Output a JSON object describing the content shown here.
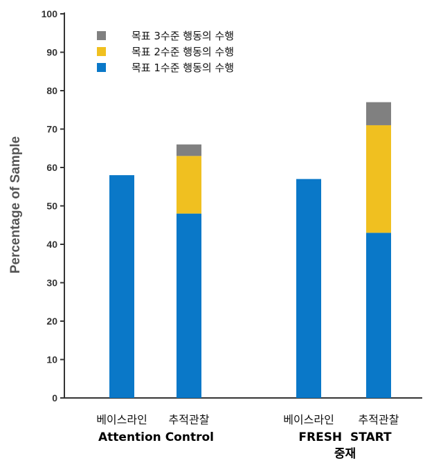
{
  "chart_data": {
    "type": "bar",
    "stacked": true,
    "ylabel": "Percentage of Sample",
    "xlabel": "",
    "ylim": [
      0,
      100
    ],
    "yticks": [
      0,
      10,
      20,
      30,
      40,
      50,
      60,
      70,
      80,
      90,
      100
    ],
    "grid": false,
    "legend_position": "top-left",
    "categories": [
      "베이스라인",
      "추적관찰",
      "베이스라인",
      "추적관찰"
    ],
    "groups": [
      {
        "label": "Attention Control",
        "categories": [
          "베이스라인",
          "추적관찰"
        ]
      },
      {
        "label_lines": [
          "FRESH  START",
          "중재"
        ],
        "categories": [
          "베이스라인",
          "추적관찰"
        ]
      }
    ],
    "series": [
      {
        "name": "목표 1수준 행동의 수행",
        "color": "#0a78c8",
        "values": [
          58,
          48,
          57,
          43
        ]
      },
      {
        "name": "목표 2수준 행동의 수행",
        "color": "#f0c020",
        "values": [
          0,
          15,
          0,
          28
        ]
      },
      {
        "name": "목표 3수준 행동의 수행",
        "color": "#808080",
        "values": [
          0,
          3,
          0,
          6
        ]
      }
    ],
    "legend_order": [
      2,
      1,
      0
    ]
  }
}
